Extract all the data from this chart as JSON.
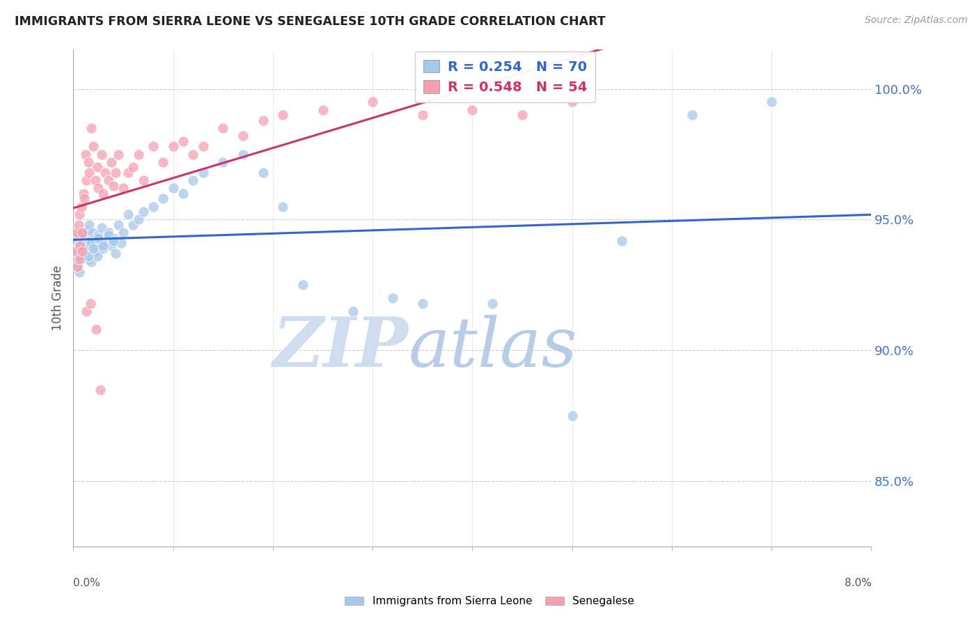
{
  "title": "IMMIGRANTS FROM SIERRA LEONE VS SENEGALESE 10TH GRADE CORRELATION CHART",
  "source": "Source: ZipAtlas.com",
  "ylabel": "10th Grade",
  "y_ticks": [
    85.0,
    90.0,
    95.0,
    100.0
  ],
  "x_min": 0.0,
  "x_max": 8.0,
  "y_min": 82.5,
  "y_max": 101.5,
  "blue_R": 0.254,
  "blue_N": 70,
  "pink_R": 0.548,
  "pink_N": 54,
  "blue_color": "#a8c8e8",
  "pink_color": "#f4a0b0",
  "trend_blue": "#3366cc",
  "trend_pink": "#cc3366",
  "watermark_zip": "#d0ddf0",
  "watermark_atlas": "#b8cce8",
  "legend_label_blue": "Immigrants from Sierra Leone",
  "legend_label_pink": "Senegalese",
  "blue_scatter_x": [
    0.02,
    0.03,
    0.04,
    0.05,
    0.06,
    0.07,
    0.08,
    0.09,
    0.1,
    0.11,
    0.12,
    0.13,
    0.14,
    0.15,
    0.16,
    0.17,
    0.18,
    0.19,
    0.2,
    0.21,
    0.22,
    0.23,
    0.24,
    0.25,
    0.26,
    0.28,
    0.3,
    0.32,
    0.35,
    0.38,
    0.4,
    0.42,
    0.45,
    0.48,
    0.5,
    0.55,
    0.6,
    0.65,
    0.7,
    0.8,
    0.9,
    1.0,
    1.1,
    1.2,
    1.3,
    1.5,
    1.7,
    1.9,
    2.1,
    2.3,
    2.8,
    3.2,
    3.5,
    4.2,
    5.0,
    5.5,
    6.2,
    7.0,
    0.04,
    0.06,
    0.08,
    0.1,
    0.12,
    0.15,
    0.18,
    0.2,
    0.25,
    0.3,
    0.35,
    0.4
  ],
  "blue_scatter_y": [
    93.5,
    94.2,
    93.8,
    94.5,
    94.0,
    93.6,
    94.3,
    93.9,
    94.1,
    94.4,
    93.7,
    94.0,
    94.6,
    93.5,
    94.8,
    94.2,
    93.4,
    94.5,
    94.0,
    94.3,
    93.8,
    94.2,
    93.6,
    94.4,
    94.1,
    94.7,
    93.9,
    94.2,
    94.5,
    94.0,
    94.3,
    93.7,
    94.8,
    94.1,
    94.5,
    95.2,
    94.8,
    95.0,
    95.3,
    95.5,
    95.8,
    96.2,
    96.0,
    96.5,
    96.8,
    97.2,
    97.5,
    96.8,
    95.5,
    92.5,
    91.5,
    92.0,
    91.8,
    91.8,
    87.5,
    94.2,
    99.0,
    99.5,
    93.2,
    93.0,
    93.5,
    93.8,
    94.0,
    93.6,
    94.1,
    93.9,
    94.3,
    94.0,
    94.4,
    94.2
  ],
  "pink_scatter_x": [
    0.02,
    0.03,
    0.04,
    0.05,
    0.06,
    0.07,
    0.08,
    0.09,
    0.1,
    0.11,
    0.12,
    0.13,
    0.15,
    0.16,
    0.18,
    0.2,
    0.22,
    0.24,
    0.25,
    0.28,
    0.3,
    0.32,
    0.35,
    0.38,
    0.4,
    0.42,
    0.45,
    0.5,
    0.55,
    0.6,
    0.65,
    0.7,
    0.8,
    0.9,
    1.0,
    1.1,
    1.2,
    1.3,
    1.5,
    1.7,
    1.9,
    2.1,
    2.5,
    3.0,
    3.5,
    4.0,
    4.5,
    5.0,
    0.06,
    0.09,
    0.13,
    0.17,
    0.23,
    0.27
  ],
  "pink_scatter_y": [
    93.8,
    94.5,
    93.2,
    94.8,
    95.2,
    94.0,
    95.5,
    94.5,
    96.0,
    95.8,
    97.5,
    96.5,
    97.2,
    96.8,
    98.5,
    97.8,
    96.5,
    97.0,
    96.2,
    97.5,
    96.0,
    96.8,
    96.5,
    97.2,
    96.3,
    96.8,
    97.5,
    96.2,
    96.8,
    97.0,
    97.5,
    96.5,
    97.8,
    97.2,
    97.8,
    98.0,
    97.5,
    97.8,
    98.5,
    98.2,
    98.8,
    99.0,
    99.2,
    99.5,
    99.0,
    99.2,
    99.0,
    99.5,
    93.5,
    93.8,
    91.5,
    91.8,
    90.8,
    88.5
  ]
}
